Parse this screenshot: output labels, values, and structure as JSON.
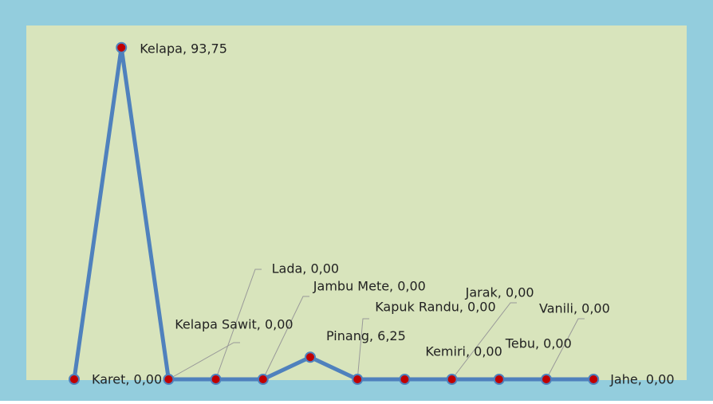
{
  "chart_data": {
    "type": "line",
    "categories": [
      "Karet",
      "Kelapa",
      "Kelapa Sawit",
      "Lada",
      "Jambu Mete",
      "Pinang",
      "Kapuk Randu",
      "Kemiri",
      "Jarak",
      "Tebu",
      "Vanili",
      "Jahe"
    ],
    "values": [
      0,
      93.75,
      0,
      0,
      0,
      6.25,
      0,
      0,
      0,
      0,
      0,
      0
    ],
    "value_labels": [
      "Karet, 0,00",
      "Kelapa, 93,75",
      "Kelapa Sawit, 0,00",
      "Lada, 0,00",
      "Jambu Mete, 0,00",
      "Pinang, 6,25",
      "Kapuk Randu, 0,00",
      "Kemiri, 0,00",
      "Jarak, 0,00",
      "Tebu, 0,00",
      "Vanili, 0,00",
      "Jahe, 0,00"
    ],
    "color": "#4f81bd",
    "marker_color": "#c00000",
    "ylim": [
      0,
      100
    ]
  }
}
